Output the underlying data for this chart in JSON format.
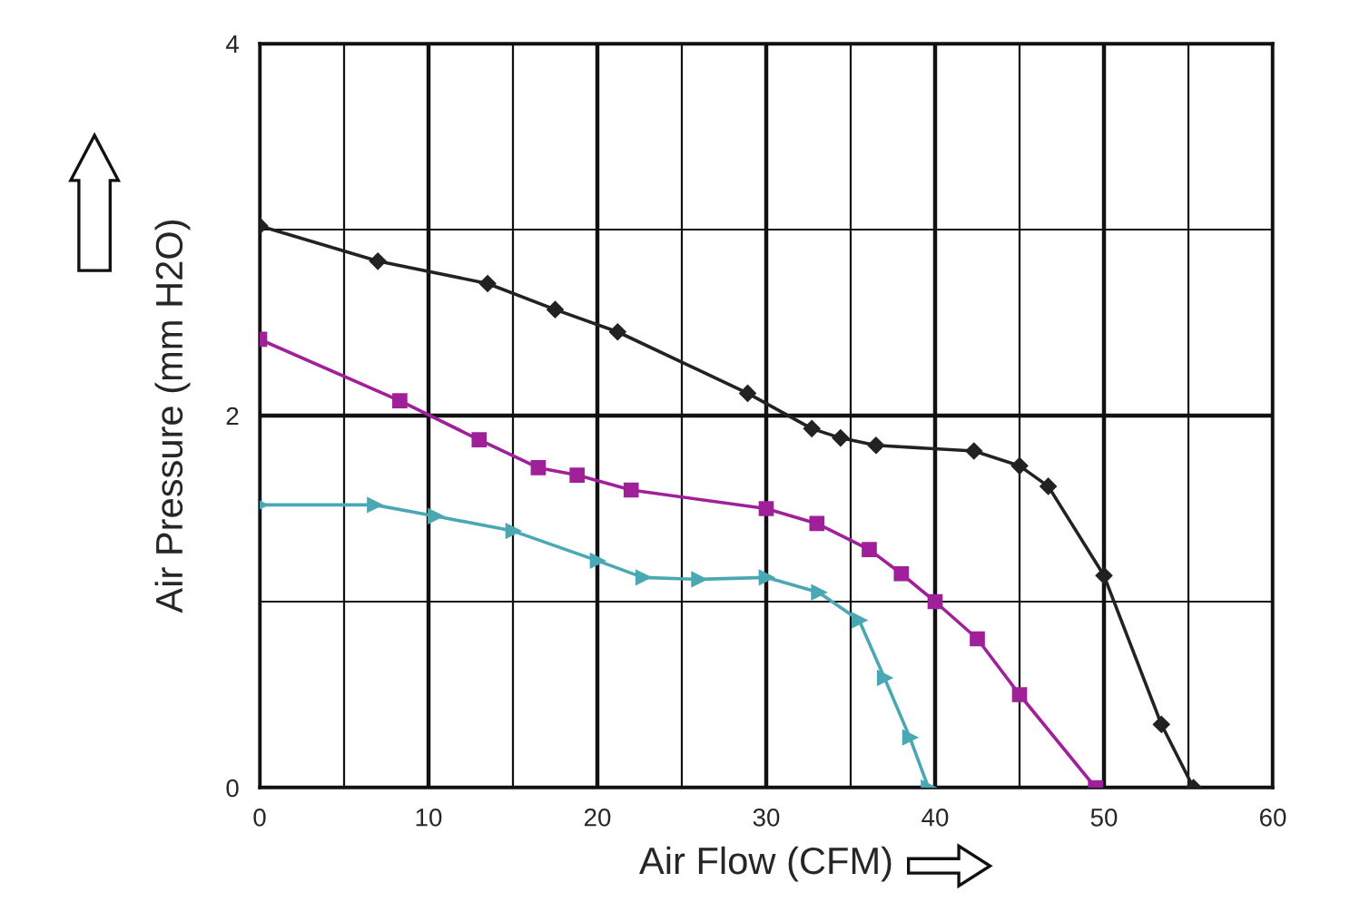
{
  "chart_data": {
    "type": "line",
    "xlabel": "Air Flow (CFM)",
    "ylabel": "Air Pressure (mm H2O)",
    "xlim": [
      0,
      60
    ],
    "ylim": [
      0,
      4
    ],
    "xticks": [
      0,
      10,
      20,
      30,
      40,
      50,
      60
    ],
    "yticks": [
      0,
      2,
      4
    ],
    "grid": true,
    "legend": false,
    "series": [
      {
        "color": "#222222",
        "marker": "diamond",
        "x": [
          0,
          7,
          13.5,
          17.5,
          21.2,
          28.9,
          32.7,
          34.4,
          36.5,
          42.3,
          45,
          46.7,
          50,
          53.4,
          55.3
        ],
        "values": [
          3.02,
          2.83,
          2.71,
          2.57,
          2.45,
          2.12,
          1.93,
          1.88,
          1.84,
          1.81,
          1.73,
          1.62,
          1.14,
          0.34,
          0
        ]
      },
      {
        "color": "#a0209a",
        "marker": "square",
        "x": [
          0,
          8.3,
          13,
          16.5,
          18.8,
          22,
          30,
          33,
          36.1,
          38,
          40,
          42.5,
          45,
          49.5
        ],
        "values": [
          2.41,
          2.08,
          1.87,
          1.72,
          1.68,
          1.6,
          1.5,
          1.42,
          1.28,
          1.15,
          1.0,
          0.8,
          0.5,
          0
        ]
      },
      {
        "color": "#4aa8b4",
        "marker": "triangle",
        "x": [
          0,
          6.8,
          10.4,
          15,
          20,
          22.7,
          26,
          30,
          33.1,
          35.5,
          37,
          38.5,
          39.6
        ],
        "values": [
          1.52,
          1.52,
          1.46,
          1.38,
          1.22,
          1.13,
          1.12,
          1.13,
          1.05,
          0.9,
          0.59,
          0.27,
          0
        ]
      }
    ]
  }
}
